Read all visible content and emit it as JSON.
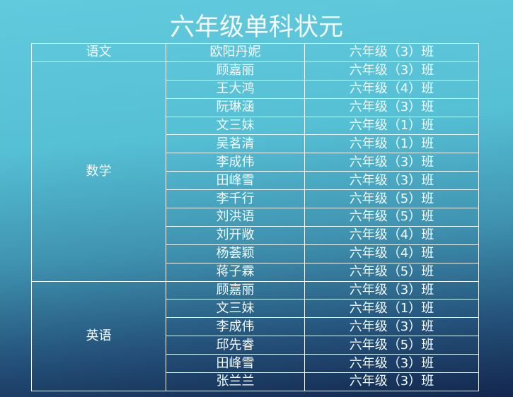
{
  "title": "六年级单科状元",
  "groups": [
    {
      "subject": "语文",
      "rows": [
        {
          "name": "欧阳丹妮",
          "class": "六年级（3）班"
        }
      ]
    },
    {
      "subject": "数学",
      "rows": [
        {
          "name": "顾嘉丽",
          "class": "六年级（3）班"
        },
        {
          "name": "王大鸿",
          "class": "六年级（4）班"
        },
        {
          "name": "阮琳涵",
          "class": "六年级（3）班"
        },
        {
          "name": "文三妹",
          "class": "六年级（1）班"
        },
        {
          "name": "吴茗清",
          "class": "六年级（1）班"
        },
        {
          "name": "李成伟",
          "class": "六年级（3）班"
        },
        {
          "name": "田峰雪",
          "class": "六年级（3）班"
        },
        {
          "name": "李千行",
          "class": "六年级（5）班"
        },
        {
          "name": "刘洪语",
          "class": "六年级（5）班"
        },
        {
          "name": "刘开敞",
          "class": "六年级（4）班"
        },
        {
          "name": "杨荟颖",
          "class": "六年级（4）班"
        },
        {
          "name": "蒋子霖",
          "class": "六年级（5）班"
        }
      ]
    },
    {
      "subject": "英语",
      "rows": [
        {
          "name": "顾嘉丽",
          "class": "六年级（3）班"
        },
        {
          "name": "文三妹",
          "class": "六年级（1）班"
        },
        {
          "name": "李成伟",
          "class": "六年级（3）班"
        },
        {
          "name": "邱先睿",
          "class": "六年级（5）班"
        },
        {
          "name": "田峰雪",
          "class": "六年级（3）班"
        },
        {
          "name": "张兰兰",
          "class": "六年级（3）班"
        }
      ]
    }
  ]
}
